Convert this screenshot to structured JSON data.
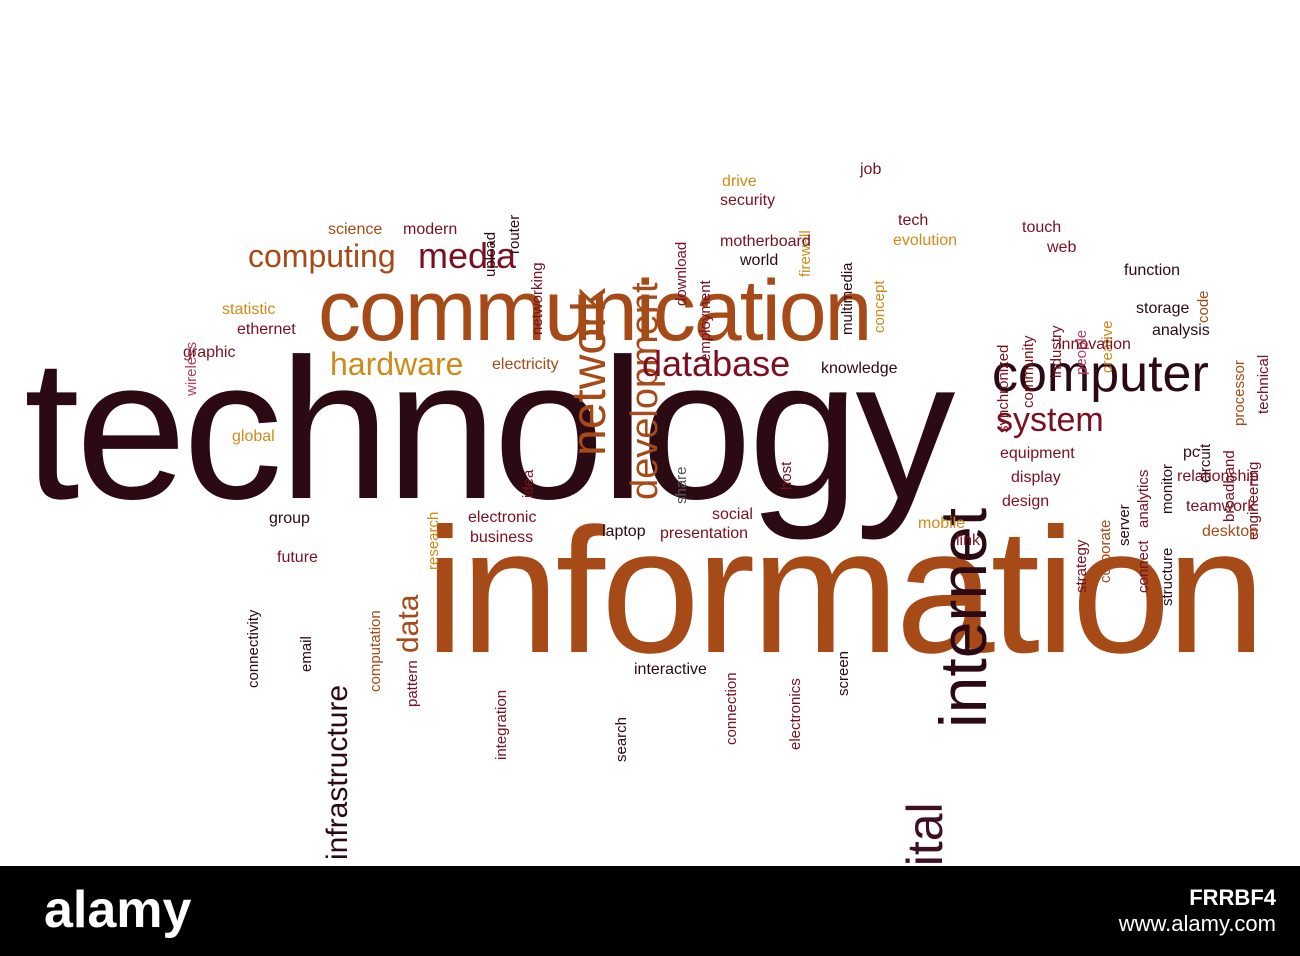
{
  "palette": {
    "dark": "#2b0a14",
    "maroon": "#7a1020",
    "brown": "#b5501a",
    "gold": "#d08a1a",
    "pink": "#b54060",
    "gray": "#555555"
  },
  "cloud": {
    "words": {
      "technology": "technology",
      "information": "information",
      "communication": "communication",
      "internet": "internet",
      "computer": "computer",
      "network": "network",
      "development": "development",
      "media": "media",
      "computing": "computing",
      "database": "database",
      "hardware": "hardware",
      "system": "system",
      "digital": "digital",
      "infrastructure": "infrastructure",
      "data": "data",
      "science": "science",
      "modern": "modern",
      "upload": "upload",
      "router": "router",
      "networking": "networking",
      "download": "download",
      "employment": "employment",
      "drive": "drive",
      "security": "security",
      "firewall": "firewall",
      "multimedia": "multimedia",
      "job": "job",
      "motherboard": "motherboard",
      "world": "world",
      "concept": "concept",
      "tech": "tech",
      "evolution": "evolution",
      "synchronized": "synchronized",
      "community": "community",
      "touch": "touch",
      "web": "web",
      "industry": "industry",
      "people": "people",
      "creative": "creative",
      "function": "function",
      "code": "code",
      "storage": "storage",
      "processor": "processor",
      "technical": "technical",
      "innovation": "innovation",
      "analysis": "analysis",
      "wireless": "wireless",
      "statistic": "statistic",
      "ethernet": "ethernet",
      "graphic": "graphic",
      "electricity": "electricity",
      "knowledge": "knowledge",
      "global": "global",
      "research": "research",
      "idea": "idea",
      "share": "share",
      "host": "host",
      "equipment": "equipment",
      "display": "display",
      "design": "design",
      "strategy": "strategy",
      "corporate": "corporate",
      "server": "server",
      "connect": "connect",
      "analytics": "analytics",
      "monitor": "monitor",
      "structure": "structure",
      "pc": "pc",
      "circuit": "circuit",
      "broadband": "broadband",
      "engineering": "engineering",
      "relationship": "relationship",
      "teamwork": "teamwork",
      "desktop": "desktop",
      "connectivity": "connectivity",
      "group": "group",
      "future": "future",
      "email": "email",
      "computation": "computation",
      "pattern": "pattern",
      "electronic": "electronic",
      "business": "business",
      "laptop": "laptop",
      "social": "social",
      "presentation": "presentation",
      "mobile": "mobile",
      "link": "link",
      "integration": "integration",
      "search": "search",
      "interactive": "interactive",
      "connection": "connection",
      "electronics": "electronics",
      "screen": "screen"
    }
  },
  "footer": {
    "logo": "alamy",
    "image_code": "FRRBF4",
    "url": "www.alamy.com"
  }
}
